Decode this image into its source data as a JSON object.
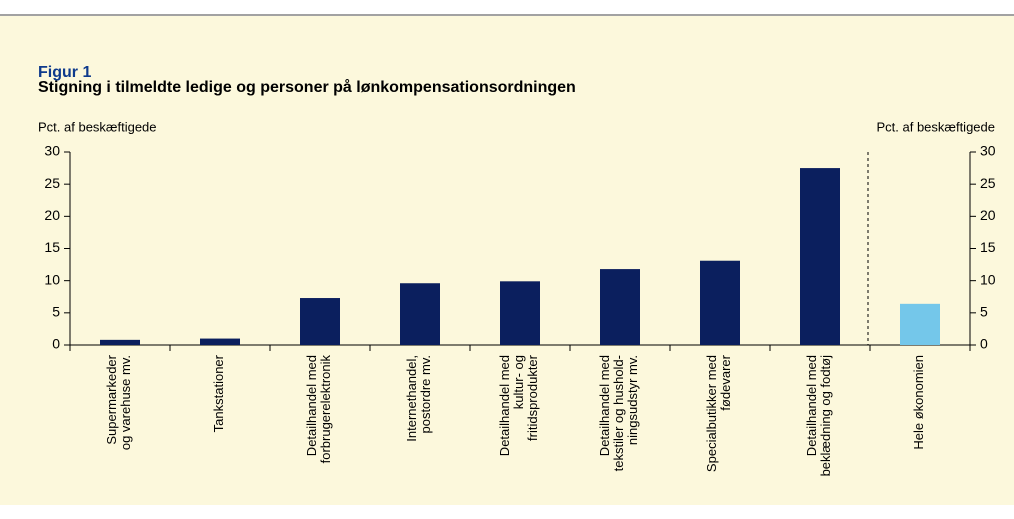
{
  "chart_data": {
    "type": "bar",
    "title": "Figur 1",
    "subtitle": "Stigning i tilmeldte ledige og personer på lønkompensationsordningen",
    "ylabel": "Pct. af beskæftigede",
    "y2label": "Pct. af beskæftigede",
    "categories": [
      "Supermarkeder\nog varehuse mv.",
      "Tankstationer",
      "Detailhandel med\nforbrugerelektronik",
      "Internethandel,\npostordre mv.",
      "Detailhandel med\nkultur- og\nfritidsprodukter",
      "Detailhandel med\ntekstiler og hushold-\nningsudstyr mv.",
      "Specialbutikker med\nfødevarer",
      "Detailhandel med\nbeklædning og fodtøj",
      "Hele økonomien"
    ],
    "values": [
      0.8,
      1.0,
      7.3,
      9.6,
      9.9,
      11.8,
      13.1,
      27.5,
      6.4
    ],
    "colors": [
      "#0b1f5e",
      "#0b1f5e",
      "#0b1f5e",
      "#0b1f5e",
      "#0b1f5e",
      "#0b1f5e",
      "#0b1f5e",
      "#0b1f5e",
      "#74c7ea"
    ],
    "ylim": [
      0,
      30
    ],
    "yticks": [
      0,
      5,
      10,
      15,
      20,
      25,
      30
    ],
    "y2lim": [
      0,
      30
    ],
    "y2ticks": [
      0,
      5,
      10,
      15,
      20,
      25,
      30
    ]
  }
}
